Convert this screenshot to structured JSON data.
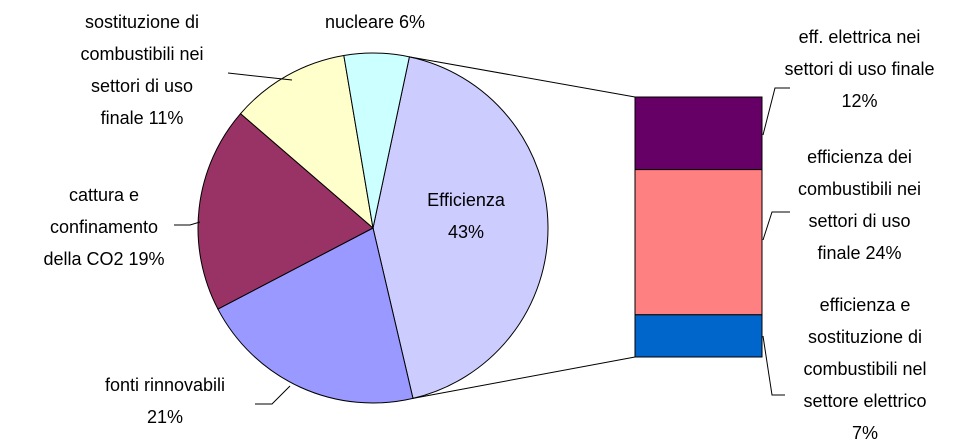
{
  "chart_data": {
    "type": "pie-of-bar",
    "categories": [
      "Efficienza",
      "fonti rinnovabili",
      "cattura e confinamento della CO2",
      "sostituzione di combustibili nei settori di uso finale",
      "nucleare"
    ],
    "values": [
      43,
      21,
      19,
      11,
      6
    ],
    "value_labels": [
      "Efficienza 43%",
      "fonti rinnovabili 21%",
      "cattura e confinamento della CO2 19%",
      "sostituzione di combustibili nei settori di uso finale 11%",
      "nucleare 6%"
    ],
    "colors": [
      "#ccccff",
      "#9999ff",
      "#993366",
      "#ffffcc",
      "#ccffff"
    ],
    "breakdown": {
      "categories": [
        "eff. elettrica nei settori di uso finale",
        "efficienza dei combustibili nei settori di uso finale",
        "efficienza e sostituzione di combustibili nel settore elettrico"
      ],
      "values": [
        12,
        24,
        7
      ],
      "value_labels": [
        "eff. elettrica nei settori di uso finale 12%",
        "efficienza dei combustibili nei settori di uso finale 24%",
        "efficienza e sostituzione di combustibili nel settore elettrico 7%"
      ],
      "colors": [
        "#660066",
        "#ff8080",
        "#0066cc"
      ]
    }
  }
}
